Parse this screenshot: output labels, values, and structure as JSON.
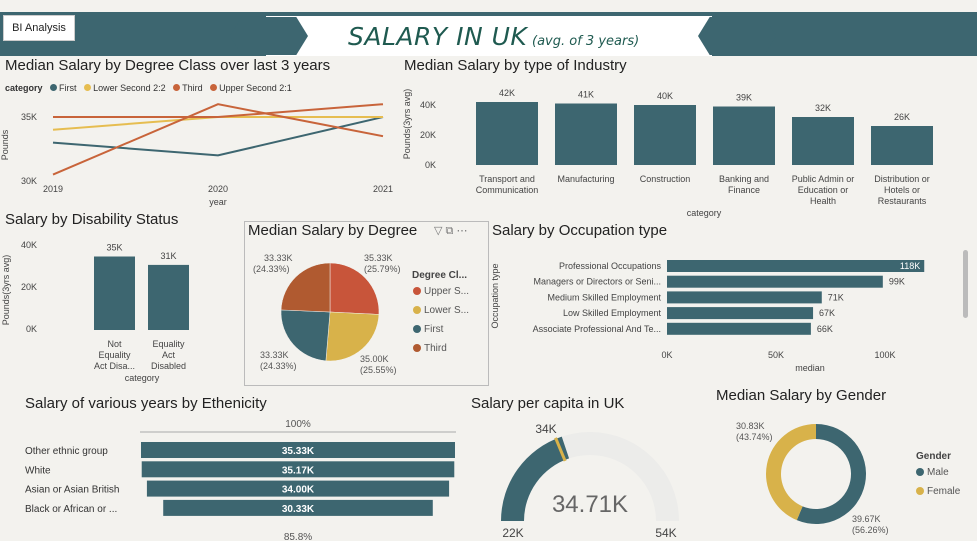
{
  "header": {
    "bi_button": "BI Analysis",
    "title": "SALARY IN UK",
    "subtitle": "(avg. of 3 years)"
  },
  "line_chart": {
    "title": "Median Salary by Degree Class over last 3 years",
    "legend_label": "category",
    "series_names": [
      "First",
      "Lower Second 2:2",
      "Third",
      "Upper Second 2:1"
    ],
    "series_colors": [
      "#3d6670",
      "#e6bd50",
      "#c8643a",
      "#c8643a"
    ],
    "y_ticks": [
      "35K",
      "30K"
    ],
    "x_ticks": [
      "2019",
      "2020",
      "2021"
    ],
    "xlabel": "year",
    "ylabel": "Pounds"
  },
  "industry_chart": {
    "title": "Median Salary by type of Industry",
    "ylabel": "Pounds(3yrs avg)",
    "xlabel": "category",
    "y_ticks": [
      "40K",
      "20K",
      "0K"
    ],
    "data_labels": [
      "42K",
      "41K",
      "40K",
      "39K",
      "32K",
      "26K"
    ],
    "categories": [
      [
        "Transport and",
        "Communication"
      ],
      [
        "Manufacturing"
      ],
      [
        "Construction"
      ],
      [
        "Banking and",
        "Finance"
      ],
      [
        "Public Admin or",
        "Education or",
        "Health"
      ],
      [
        "Distribution or",
        "Hotels or",
        "Restaurants"
      ]
    ]
  },
  "disability_chart": {
    "title": "Salary by Disability Status",
    "ylabel": "Pounds(3yrs avg)",
    "xlabel": "category",
    "y_ticks": [
      "40K",
      "20K",
      "0K"
    ],
    "data_labels": [
      "35K",
      "31K"
    ],
    "categories": [
      [
        "Not",
        "Equality",
        "Act Disa..."
      ],
      [
        "Equality",
        "Act",
        "Disabled"
      ]
    ]
  },
  "pie_chart": {
    "title": "Median Salary by Degree",
    "legend_title": "Degree Cl...",
    "legend_items": [
      "Upper S...",
      "Lower S...",
      "First",
      "Third"
    ],
    "legend_colors": [
      "#c8553a",
      "#d8b24a",
      "#3d6670",
      "#b05a30"
    ],
    "slice_labels": [
      [
        "35.33K",
        "(25.79%)"
      ],
      [
        "35.00K",
        "(25.55%)"
      ],
      [
        "33.33K",
        "(24.33%)"
      ],
      [
        "33.33K",
        "(24.33%)"
      ]
    ]
  },
  "occupation_chart": {
    "title": "Salary by Occupation type",
    "ylabel": "Occupation type",
    "xlabel": "median",
    "x_ticks": [
      "0K",
      "50K",
      "100K"
    ],
    "categories": [
      "Professional Occupations",
      "Managers or Directors or Seni...",
      "Medium Skilled Employment",
      "Low Skilled Employment",
      "Associate Professional And Te..."
    ],
    "data_labels": [
      "118K",
      "99K",
      "71K",
      "67K",
      "66K"
    ]
  },
  "ethnicity_chart": {
    "title": "Salary of various years by Ethenicity",
    "top_pct": "100%",
    "bottom_pct": "85.8%",
    "categories": [
      "Other ethnic group",
      "White",
      "Asian or Asian British",
      "Black or African or ..."
    ],
    "data_labels": [
      "35.33K",
      "35.17K",
      "34.00K",
      "30.33K"
    ]
  },
  "gauge_chart": {
    "title": "Salary per capita in UK",
    "value_label": "34.71K",
    "min_label": "22K",
    "max_label": "54K",
    "target_label": "34K"
  },
  "donut_chart": {
    "title": "Median Salary by Gender",
    "legend_title": "Gender",
    "legend_items": [
      "Male",
      "Female"
    ],
    "legend_colors": [
      "#3d6670",
      "#d8b24a"
    ],
    "female_label": [
      "30.83K",
      "(43.74%)"
    ],
    "male_label": [
      "39.67K",
      "(56.26%)"
    ]
  },
  "chart_data": [
    {
      "type": "line",
      "title": "Median Salary by Degree Class over last 3 years",
      "x": [
        "2019",
        "2020",
        "2021"
      ],
      "xlabel": "year",
      "ylabel": "Pounds",
      "ylim": [
        30000,
        36500
      ],
      "series": [
        {
          "name": "First",
          "values": [
            33000,
            32000,
            35000
          ]
        },
        {
          "name": "Lower Second 2:2",
          "values": [
            34000,
            35000,
            35000
          ]
        },
        {
          "name": "Third",
          "values": [
            30500,
            36000,
            33500
          ]
        },
        {
          "name": "Upper Second 2:1",
          "values": [
            35000,
            35000,
            36000
          ]
        }
      ]
    },
    {
      "type": "bar",
      "title": "Median Salary by type of Industry",
      "categories": [
        "Transport and Communication",
        "Manufacturing",
        "Construction",
        "Banking and Finance",
        "Public Admin or Education or Health",
        "Distribution or Hotels or Restaurants"
      ],
      "values": [
        42000,
        41000,
        40000,
        39000,
        32000,
        26000
      ],
      "xlabel": "category",
      "ylabel": "Pounds(3yrs avg)",
      "ylim": [
        0,
        48000
      ]
    },
    {
      "type": "bar",
      "title": "Salary by Disability Status",
      "categories": [
        "Not Equality Act Disa...",
        "Equality Act Disabled"
      ],
      "values": [
        35000,
        31000
      ],
      "xlabel": "category",
      "ylabel": "Pounds(3yrs avg)",
      "ylim": [
        0,
        45000
      ]
    },
    {
      "type": "pie",
      "title": "Median Salary by Degree",
      "categories": [
        "Upper S...",
        "Lower S...",
        "First",
        "Third"
      ],
      "values": [
        35330,
        35000,
        33330,
        33330
      ],
      "percents": [
        25.79,
        25.55,
        24.33,
        24.33
      ]
    },
    {
      "type": "bar",
      "orientation": "horizontal",
      "title": "Salary by Occupation type",
      "categories": [
        "Professional Occupations",
        "Managers or Directors or Seni...",
        "Medium Skilled Employment",
        "Low Skilled Employment",
        "Associate Professional And Te..."
      ],
      "values": [
        118000,
        99000,
        71000,
        67000,
        66000
      ],
      "xlabel": "median",
      "ylabel": "Occupation type",
      "xlim": [
        0,
        120000
      ]
    },
    {
      "type": "bar",
      "orientation": "horizontal",
      "subtype": "funnel",
      "title": "Salary of various years by Ethenicity",
      "categories": [
        "Other ethnic group",
        "White",
        "Asian or Asian British",
        "Black or African or ..."
      ],
      "values": [
        35330,
        35170,
        34000,
        30330
      ]
    },
    {
      "type": "gauge",
      "title": "Salary per capita in UK",
      "value": 34710,
      "min": 22000,
      "max": 54000,
      "target": 34000
    },
    {
      "type": "pie",
      "subtype": "donut",
      "title": "Median Salary by Gender",
      "categories": [
        "Male",
        "Female"
      ],
      "values": [
        39670,
        30830
      ],
      "percents": [
        56.26,
        43.74
      ]
    }
  ]
}
